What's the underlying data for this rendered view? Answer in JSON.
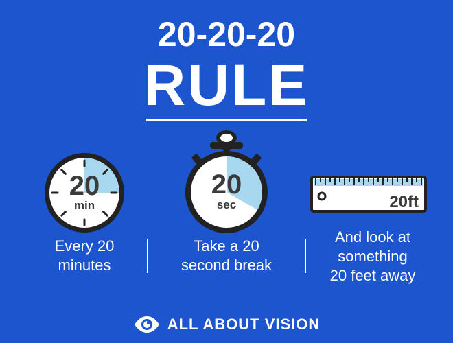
{
  "title": {
    "line1": "20-20-20",
    "line2": "RULE"
  },
  "steps": [
    {
      "icon": "timer-icon",
      "value": "20",
      "unit": "min",
      "caption_line1": "Every 20",
      "caption_line2": "minutes"
    },
    {
      "icon": "stopwatch-icon",
      "value": "20",
      "unit": "sec",
      "caption_line1": "Take a 20",
      "caption_line2": "second break"
    },
    {
      "icon": "ruler-icon",
      "label": "20ft",
      "caption_line1": "And look at",
      "caption_line2": "something",
      "caption_line3": "20 feet away"
    }
  ],
  "brand": {
    "name": "ALL ABOUT VISION",
    "icon": "eye-icon"
  },
  "colors": {
    "background": "#1d55cf",
    "text": "#ffffff",
    "accent_fill": "#a8d8ef",
    "outline": "#222222"
  }
}
